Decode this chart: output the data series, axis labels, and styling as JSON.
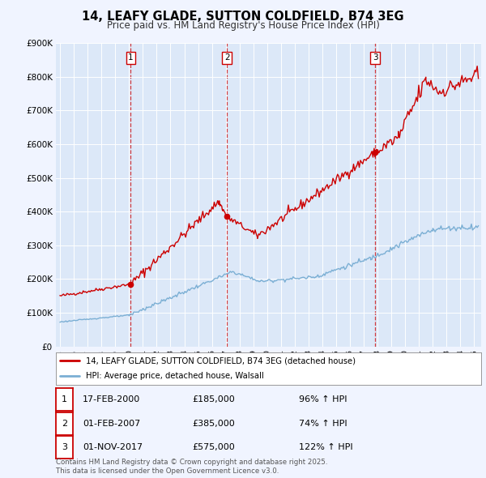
{
  "title": "14, LEAFY GLADE, SUTTON COLDFIELD, B74 3EG",
  "subtitle": "Price paid vs. HM Land Registry's House Price Index (HPI)",
  "xlim": [
    1994.7,
    2025.5
  ],
  "ylim": [
    0,
    900000
  ],
  "yticks": [
    0,
    100000,
    200000,
    300000,
    400000,
    500000,
    600000,
    700000,
    800000,
    900000
  ],
  "ytick_labels": [
    "£0",
    "£100K",
    "£200K",
    "£300K",
    "£400K",
    "£500K",
    "£600K",
    "£700K",
    "£800K",
    "£900K"
  ],
  "xticks": [
    1995,
    1996,
    1997,
    1998,
    1999,
    2000,
    2001,
    2002,
    2003,
    2004,
    2005,
    2006,
    2007,
    2008,
    2009,
    2010,
    2011,
    2012,
    2013,
    2014,
    2015,
    2016,
    2017,
    2018,
    2019,
    2020,
    2021,
    2022,
    2023,
    2024,
    2025
  ],
  "background_color": "#f0f4ff",
  "plot_bg_color": "#dce8f8",
  "grid_color": "#ffffff",
  "red_line_color": "#cc0000",
  "blue_line_color": "#7bafd4",
  "sale_marker_color": "#cc0000",
  "dashed_line_color": "#cc0000",
  "sale_points": [
    {
      "year": 2000.125,
      "price": 185000,
      "label": "1"
    },
    {
      "year": 2007.083,
      "price": 385000,
      "label": "2"
    },
    {
      "year": 2017.833,
      "price": 575000,
      "label": "3"
    }
  ],
  "legend_entries": [
    {
      "label": "14, LEAFY GLADE, SUTTON COLDFIELD, B74 3EG (detached house)",
      "color": "#cc0000"
    },
    {
      "label": "HPI: Average price, detached house, Walsall",
      "color": "#7bafd4"
    }
  ],
  "table_rows": [
    {
      "num": "1",
      "date": "17-FEB-2000",
      "price": "£185,000",
      "hpi": "96% ↑ HPI"
    },
    {
      "num": "2",
      "date": "01-FEB-2007",
      "price": "£385,000",
      "hpi": "74% ↑ HPI"
    },
    {
      "num": "3",
      "date": "01-NOV-2017",
      "price": "£575,000",
      "hpi": "122% ↑ HPI"
    }
  ],
  "footer": "Contains HM Land Registry data © Crown copyright and database right 2025.\nThis data is licensed under the Open Government Licence v3.0."
}
